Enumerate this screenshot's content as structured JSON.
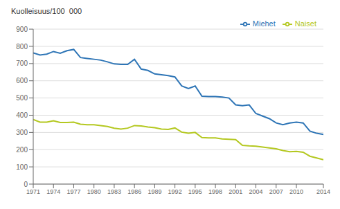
{
  "chart_data": {
    "type": "line",
    "ylabel": "Kuolleisuus/100  000",
    "x": [
      1971,
      1972,
      1973,
      1974,
      1975,
      1976,
      1977,
      1978,
      1979,
      1980,
      1981,
      1982,
      1983,
      1984,
      1985,
      1986,
      1987,
      1988,
      1989,
      1990,
      1991,
      1992,
      1993,
      1994,
      1995,
      1996,
      1997,
      1998,
      1999,
      2000,
      2001,
      2002,
      2003,
      2004,
      2005,
      2006,
      2007,
      2008,
      2009,
      2010,
      2011,
      2012,
      2013,
      2014
    ],
    "series": [
      {
        "name": "Miehet",
        "color": "#2e75b6",
        "values": [
          762,
          750,
          755,
          770,
          760,
          775,
          782,
          735,
          730,
          725,
          720,
          710,
          698,
          695,
          695,
          725,
          668,
          660,
          640,
          635,
          630,
          622,
          570,
          555,
          570,
          510,
          508,
          508,
          505,
          500,
          460,
          455,
          460,
          410,
          395,
          380,
          355,
          345,
          355,
          360,
          355,
          308,
          295,
          288
        ]
      },
      {
        "name": "Naiset",
        "color": "#b4c820",
        "values": [
          375,
          360,
          360,
          368,
          358,
          358,
          360,
          348,
          345,
          345,
          340,
          335,
          325,
          320,
          325,
          340,
          338,
          332,
          328,
          320,
          318,
          326,
          302,
          295,
          300,
          270,
          268,
          268,
          262,
          260,
          258,
          225,
          222,
          220,
          215,
          210,
          205,
          195,
          188,
          190,
          185,
          162,
          152,
          142
        ]
      }
    ],
    "xlim": [
      1971,
      2014
    ],
    "xticks": [
      1971,
      1974,
      1977,
      1980,
      1983,
      1986,
      1989,
      1992,
      1995,
      1998,
      2001,
      2004,
      2007,
      2010,
      2014
    ],
    "ylim": [
      0,
      900
    ],
    "yticks": [
      0,
      100,
      200,
      300,
      400,
      500,
      600,
      700,
      800,
      900
    ],
    "grid": true,
    "legend": "upper right"
  }
}
